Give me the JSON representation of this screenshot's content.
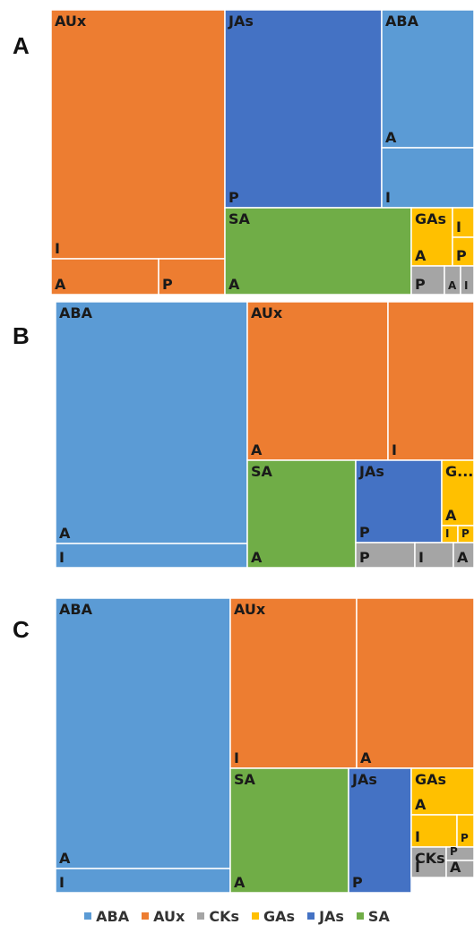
{
  "colors": {
    "ABA": "#5b9bd5",
    "AUx": "#ed7d31",
    "CKs": "#a5a5a5",
    "GAs": "#ffc000",
    "JAs": "#4472c4",
    "SA": "#70ad47"
  },
  "legend": [
    "ABA",
    "AUx",
    "CKs",
    "GAs",
    "JAs",
    "SA"
  ],
  "chart_data": [
    {
      "type": "treemap",
      "panel": "A",
      "cells": [
        {
          "group": "AUx",
          "group_label": "AUx",
          "label": "I"
        },
        {
          "group": "AUx",
          "label": "A"
        },
        {
          "group": "AUx",
          "label": "P"
        },
        {
          "group": "JAs",
          "group_label": "JAs",
          "label": "P"
        },
        {
          "group": "ABA",
          "group_label": "ABA",
          "label": "A"
        },
        {
          "group": "ABA",
          "label": "I"
        },
        {
          "group": "SA",
          "group_label": "SA",
          "label": "A"
        },
        {
          "group": "GAs",
          "group_label": "GAs",
          "label": "A"
        },
        {
          "group": "GAs",
          "label": "I"
        },
        {
          "group": "GAs",
          "label": "P"
        },
        {
          "group": "CKs",
          "label": "P"
        },
        {
          "group": "CKs",
          "label": "A"
        },
        {
          "group": "CKs",
          "label": "I"
        }
      ]
    },
    {
      "type": "treemap",
      "panel": "B",
      "cells": [
        {
          "group": "ABA",
          "group_label": "ABA",
          "label": "A"
        },
        {
          "group": "ABA",
          "label": "I"
        },
        {
          "group": "AUx",
          "group_label": "AUx",
          "label": "A"
        },
        {
          "group": "AUx",
          "label": "I"
        },
        {
          "group": "SA",
          "group_label": "SA",
          "label": "A"
        },
        {
          "group": "JAs",
          "group_label": "JAs",
          "label": "P"
        },
        {
          "group": "GAs",
          "group_label": "G...",
          "label": "A"
        },
        {
          "group": "GAs",
          "label": "I"
        },
        {
          "group": "GAs",
          "label": "P"
        },
        {
          "group": "CKs",
          "label": "P"
        },
        {
          "group": "CKs",
          "label": "I"
        },
        {
          "group": "CKs",
          "label": "A"
        }
      ]
    },
    {
      "type": "treemap",
      "panel": "C",
      "cells": [
        {
          "group": "ABA",
          "group_label": "ABA",
          "label": "A"
        },
        {
          "group": "ABA",
          "label": "I"
        },
        {
          "group": "AUx",
          "group_label": "AUx",
          "label": "I"
        },
        {
          "group": "AUx",
          "label": "A"
        },
        {
          "group": "SA",
          "group_label": "SA",
          "label": "A"
        },
        {
          "group": "JAs",
          "group_label": "JAs",
          "label": "P"
        },
        {
          "group": "GAs",
          "group_label": "GAs",
          "label": "A"
        },
        {
          "group": "GAs",
          "label": "I"
        },
        {
          "group": "GAs",
          "label": "P"
        },
        {
          "group": "CKs",
          "group_label": "CKs",
          "label": "I"
        },
        {
          "group": "CKs",
          "label": "P"
        },
        {
          "group": "CKs",
          "label": "A"
        }
      ]
    }
  ]
}
